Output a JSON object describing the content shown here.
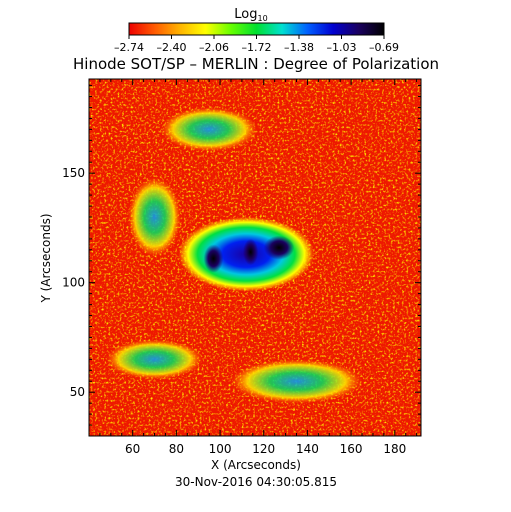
{
  "chart_data": {
    "type": "heatmap",
    "title": "Hinode SOT/SP – MERLIN : Degree of Polarization",
    "xlabel": "X (Arcseconds)",
    "ylabel": "Y (Arcseconds)",
    "timestamp": "30-Nov-2016 04:30:05.815",
    "xlim": [
      40,
      192
    ],
    "ylim": [
      30,
      193
    ],
    "x_ticks": [
      {
        "value": 60,
        "label": "60"
      },
      {
        "value": 80,
        "label": "80"
      },
      {
        "value": 100,
        "label": "100"
      },
      {
        "value": 120,
        "label": "120"
      },
      {
        "value": 140,
        "label": "140"
      },
      {
        "value": 160,
        "label": "160"
      },
      {
        "value": 180,
        "label": "180"
      }
    ],
    "y_ticks": [
      {
        "value": 50,
        "label": "50"
      },
      {
        "value": 100,
        "label": "100"
      },
      {
        "value": 150,
        "label": "150"
      }
    ],
    "colorbar": {
      "label_main": "Log",
      "label_sub": "10",
      "range": [
        -2.74,
        -0.69
      ],
      "tick_labels": [
        "–2.74",
        "–2.40",
        "–2.06",
        "–1.72",
        "–1.38",
        "–1.03",
        "–0.69"
      ],
      "colors": [
        "#ee0000",
        "#ff5a00",
        "#ffb400",
        "#ffff00",
        "#66ff00",
        "#00e030",
        "#00e0d0",
        "#0060ff",
        "#0000d0",
        "#1a0060",
        "#000000"
      ]
    },
    "features": [
      {
        "kind": "sunspot-umbra",
        "x": 97,
        "y": 111,
        "rx": 4.5,
        "ry": 6.5
      },
      {
        "kind": "sunspot-umbra",
        "x": 114,
        "y": 114,
        "rx": 3.5,
        "ry": 6
      },
      {
        "kind": "sunspot-umbra",
        "x": 127,
        "y": 116,
        "rx": 7,
        "ry": 5.5
      },
      {
        "kind": "penumbra-region",
        "x": 112,
        "y": 113,
        "rx": 31,
        "ry": 17
      },
      {
        "kind": "plage-band",
        "x": 70,
        "y": 65,
        "rx": 22,
        "ry": 9
      },
      {
        "kind": "plage-band",
        "x": 135,
        "y": 55,
        "rx": 30,
        "ry": 10
      },
      {
        "kind": "plage-band",
        "x": 70,
        "y": 130,
        "rx": 12,
        "ry": 18
      },
      {
        "kind": "plage-band",
        "x": 95,
        "y": 170,
        "rx": 22,
        "ry": 10
      }
    ]
  }
}
